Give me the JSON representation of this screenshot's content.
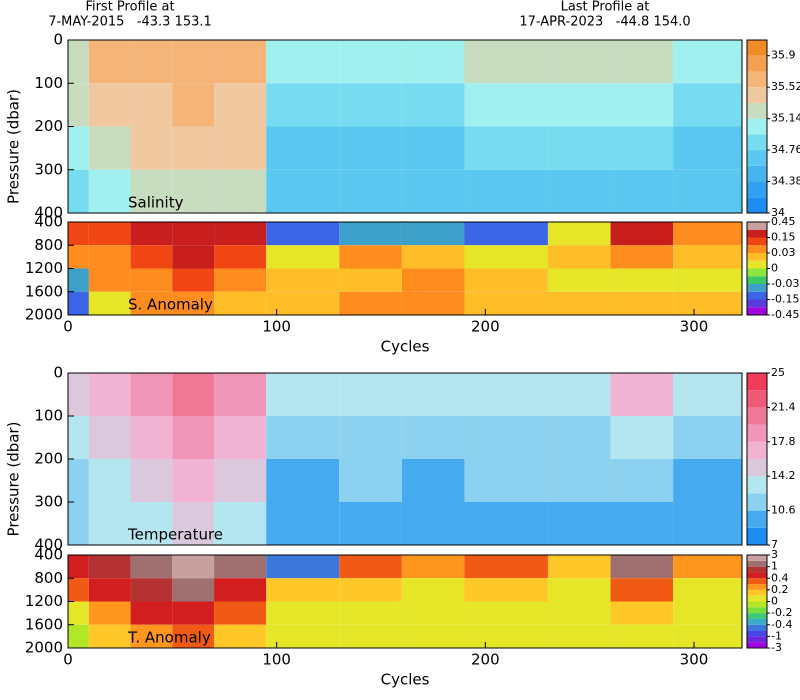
{
  "header": {
    "first_title": "First Profile at",
    "first_info": "7-MAY-2015   -43.3 153.1",
    "last_title": "Last Profile at",
    "last_info": "17-APR-2023   -44.8 154.0"
  },
  "chart_data": [
    {
      "type": "heatmap",
      "label": "Salinity",
      "ylabel": "Pressure (dbar)",
      "xlim": [
        0,
        323
      ],
      "ylim": [
        0,
        400
      ],
      "y_inverted": true,
      "yticks": [
        0,
        100,
        200,
        300,
        400
      ],
      "x_edges": [
        0,
        10,
        30,
        50,
        70,
        95,
        130,
        160,
        190,
        230,
        260,
        290,
        323
      ],
      "y_edges": [
        0,
        100,
        200,
        300,
        400
      ],
      "values": [
        [
          35.3,
          35.2,
          35.0,
          34.9
        ],
        [
          35.6,
          35.5,
          35.3,
          35.1
        ],
        [
          35.6,
          35.5,
          35.4,
          35.2
        ],
        [
          35.7,
          35.6,
          35.5,
          35.3
        ],
        [
          35.6,
          35.5,
          35.4,
          35.3
        ],
        [
          35.0,
          34.9,
          34.7,
          34.6
        ],
        [
          35.1,
          34.9,
          34.7,
          34.6
        ],
        [
          35.0,
          34.9,
          34.7,
          34.6
        ],
        [
          35.2,
          35.0,
          34.8,
          34.7
        ],
        [
          35.2,
          35.0,
          34.8,
          34.7
        ],
        [
          35.3,
          35.1,
          34.9,
          34.7
        ],
        [
          35.0,
          34.9,
          34.7,
          34.6
        ]
      ],
      "colorbar": {
        "levels": [
          34,
          34.19,
          34.38,
          34.57,
          34.76,
          34.95,
          35.14,
          35.33,
          35.52,
          35.71,
          35.9,
          36.09
        ],
        "colors": [
          "#1e8cf0",
          "#32a0f0",
          "#46b4f0",
          "#5ac8f0",
          "#78dcf0",
          "#a0f0f0",
          "#c8dcc0",
          "#f0c8a0",
          "#f5b478",
          "#f5a050",
          "#f08c28"
        ],
        "cticks": [
          34,
          34.38,
          34.76,
          35.14,
          35.52,
          35.9
        ]
      }
    },
    {
      "type": "heatmap",
      "label": "S. Anomaly",
      "xlabel": "Cycles",
      "xlim": [
        0,
        323
      ],
      "xticks": [
        0,
        100,
        200,
        300
      ],
      "ylim": [
        400,
        2000
      ],
      "y_inverted": true,
      "yticks": [
        400,
        800,
        1200,
        1600,
        2000
      ],
      "x_edges": [
        0,
        10,
        30,
        50,
        70,
        95,
        130,
        160,
        190,
        230,
        260,
        290,
        323
      ],
      "y_edges": [
        400,
        800,
        1200,
        1600,
        2000
      ],
      "values": [
        [
          0.09,
          0.05,
          -0.05,
          -0.1
        ],
        [
          0.1,
          0.05,
          0.03,
          0.0
        ],
        [
          0.15,
          0.1,
          0.05,
          0.03
        ],
        [
          0.2,
          0.15,
          0.1,
          0.05
        ],
        [
          0.15,
          0.1,
          0.05,
          0.02
        ],
        [
          -0.1,
          0.0,
          0.02,
          0.02
        ],
        [
          -0.05,
          0.03,
          0.02,
          0.03
        ],
        [
          -0.05,
          0.02,
          0.03,
          0.03
        ],
        [
          -0.1,
          0.0,
          0.02,
          0.02
        ],
        [
          0.0,
          0.02,
          0.01,
          0.02
        ],
        [
          0.2,
          0.03,
          0.01,
          0.02
        ],
        [
          0.05,
          0.02,
          0.01,
          0.02
        ]
      ],
      "colorbar": {
        "levels": [
          -0.45,
          -0.3,
          -0.15,
          -0.09,
          -0.03,
          -0.015,
          0,
          0.015,
          0.03,
          0.09,
          0.15,
          0.3,
          0.45
        ],
        "colors": [
          "#a000e0",
          "#5a3cdc",
          "#3c64e6",
          "#3ca0c8",
          "#3cc864",
          "#8ce63c",
          "#e6e628",
          "#ffbe28",
          "#ff8c1e",
          "#f04614",
          "#c81e1e",
          "#c8a0a0"
        ],
        "cticks": [
          -0.45,
          -0.15,
          -0.03,
          0,
          0.03,
          0.15,
          0.45
        ]
      }
    },
    {
      "type": "heatmap",
      "label": "Temperature",
      "ylabel": "Pressure (dbar)",
      "xlim": [
        0,
        323
      ],
      "ylim": [
        0,
        400
      ],
      "y_inverted": true,
      "yticks": [
        0,
        100,
        200,
        300,
        400
      ],
      "x_edges": [
        0,
        10,
        30,
        50,
        70,
        95,
        130,
        160,
        190,
        230,
        260,
        290,
        323
      ],
      "y_edges": [
        0,
        100,
        200,
        300,
        400
      ],
      "values": [
        [
          15,
          13,
          12,
          11.5
        ],
        [
          17,
          15,
          14,
          13
        ],
        [
          19,
          17,
          15,
          14
        ],
        [
          20,
          18,
          16,
          15
        ],
        [
          18,
          16,
          15,
          14
        ],
        [
          13,
          11,
          10,
          9.5
        ],
        [
          14,
          12,
          11,
          10
        ],
        [
          13,
          11,
          10,
          9.5
        ],
        [
          14,
          12,
          11,
          10
        ],
        [
          14,
          12,
          11,
          10
        ],
        [
          16,
          14,
          12,
          10.5
        ],
        [
          14,
          12,
          10.5,
          10
        ]
      ],
      "colorbar": {
        "levels": [
          7,
          8.8,
          10.6,
          12.4,
          14.2,
          16,
          17.8,
          19.6,
          21.4,
          23.2,
          25
        ],
        "colors": [
          "#1e8cf0",
          "#46aaf0",
          "#8cd2f0",
          "#b4e6f0",
          "#dcc8dc",
          "#f0b4d2",
          "#f096b9",
          "#f07896",
          "#f05a78",
          "#f03c5a"
        ],
        "cticks": [
          7,
          10.6,
          14.2,
          17.8,
          21.4,
          25
        ]
      }
    },
    {
      "type": "heatmap",
      "label": "T. Anomaly",
      "xlabel": "Cycles",
      "xlim": [
        0,
        323
      ],
      "xticks": [
        0,
        100,
        200,
        300
      ],
      "ylim": [
        400,
        2000
      ],
      "y_inverted": true,
      "yticks": [
        400,
        800,
        1200,
        1600,
        2000
      ],
      "x_edges": [
        0,
        10,
        30,
        50,
        70,
        95,
        130,
        160,
        190,
        230,
        260,
        290,
        323
      ],
      "y_edges": [
        400,
        800,
        1200,
        1600,
        2000
      ],
      "values": [
        [
          0.5,
          0.3,
          0.0,
          -0.1
        ],
        [
          0.8,
          0.5,
          0.2,
          0.1
        ],
        [
          1.5,
          0.8,
          0.4,
          0.2
        ],
        [
          2,
          1,
          0.5,
          0.3
        ],
        [
          1.2,
          0.5,
          0.3,
          0.1
        ],
        [
          -0.5,
          0.1,
          0.0,
          0.0
        ],
        [
          0.3,
          0.1,
          0.05,
          0.05
        ],
        [
          0.2,
          0.0,
          0.05,
          0.0
        ],
        [
          0.3,
          0.1,
          0.0,
          0.05
        ],
        [
          0.1,
          0.05,
          0.05,
          0.0
        ],
        [
          1,
          0.3,
          0.1,
          0.05
        ],
        [
          0.2,
          0.05,
          0.0,
          0.0
        ]
      ],
      "colorbar": {
        "levels": [
          -3,
          -2,
          -1,
          -0.7,
          -0.4,
          -0.3,
          -0.2,
          -0.1,
          0,
          0.1,
          0.2,
          0.3,
          0.4,
          0.7,
          1,
          2,
          3
        ],
        "colors": [
          "#a000e0",
          "#6e28dc",
          "#4646e6",
          "#3c78dc",
          "#3caac8",
          "#3cc878",
          "#78dc3c",
          "#b4e628",
          "#e6e628",
          "#ffc828",
          "#ff961e",
          "#f05a14",
          "#d21e1e",
          "#b43232",
          "#a07070",
          "#c8a0a0"
        ],
        "cticks": [
          -3,
          -1,
          -0.4,
          -0.2,
          0,
          0.2,
          0.4,
          1,
          3
        ]
      }
    }
  ]
}
